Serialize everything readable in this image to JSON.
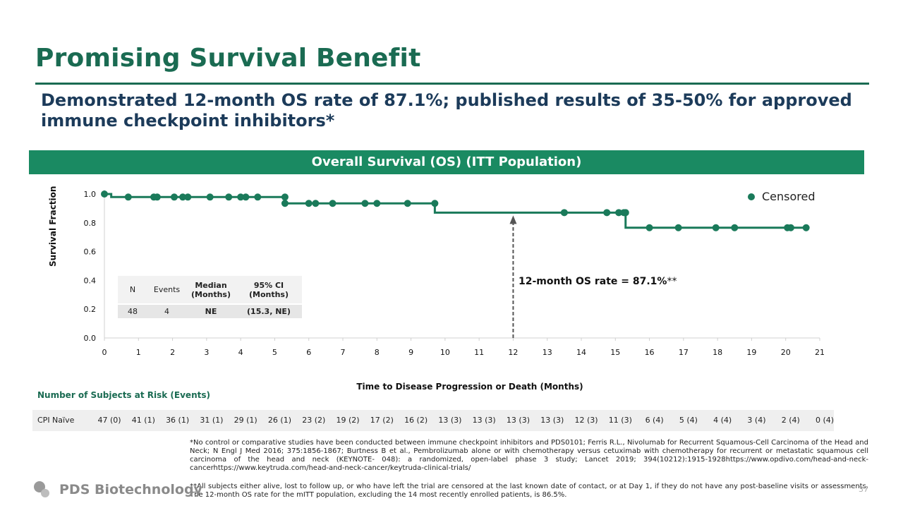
{
  "slide": {
    "title": "Promising Survival Benefit",
    "subtitle": "Demonstrated 12-month OS rate of 87.1%; published results of 35-50% for approved immune checkpoint inhibitors*",
    "banner": "Overall Survival (OS) (ITT Population)",
    "page_number": "37",
    "company": "PDS Biotechnology"
  },
  "legend_label": "Censored",
  "stats_table": {
    "headers": [
      "N",
      "Events",
      "Median (Months)",
      "95% CI (Months)"
    ],
    "values": [
      "48",
      "4",
      "NE",
      "(15.3, NE)"
    ]
  },
  "annotation": {
    "prefix": "12-month OS rate = ",
    "value": "87.1%",
    "suffix": "**",
    "at_month": 12
  },
  "chart_data": {
    "type": "line",
    "xlabel": "Time to Disease Progression or Death (Months)",
    "ylabel": "Survival Fraction",
    "xlim": [
      0,
      21
    ],
    "ylim": [
      0,
      1.0
    ],
    "xticks": [
      "0",
      "1",
      "2",
      "3",
      "4",
      "5",
      "6",
      "7",
      "8",
      "9",
      "10",
      "11",
      "12",
      "13",
      "14",
      "15",
      "16",
      "17",
      "18",
      "19",
      "20",
      "21"
    ],
    "yticks": [
      "0.0",
      "0.2",
      "0.4",
      "0.6",
      "0.8",
      "1.0"
    ],
    "colors": {
      "line": "#1a7a5a",
      "marker": "#1a7a5a",
      "arrow": "#555555"
    },
    "steps": [
      {
        "x": 0,
        "y": 1.0
      },
      {
        "x": 0.2,
        "y": 0.979
      },
      {
        "x": 5.3,
        "y": 0.935
      },
      {
        "x": 9.7,
        "y": 0.871
      },
      {
        "x": 15.3,
        "y": 0.766
      }
    ],
    "end_x": 20.6,
    "censored": [
      {
        "x": 0.0,
        "y": 1.0
      },
      {
        "x": 0.7,
        "y": 0.979
      },
      {
        "x": 1.45,
        "y": 0.979
      },
      {
        "x": 1.55,
        "y": 0.979
      },
      {
        "x": 2.05,
        "y": 0.979
      },
      {
        "x": 2.3,
        "y": 0.979
      },
      {
        "x": 2.45,
        "y": 0.979
      },
      {
        "x": 3.1,
        "y": 0.979
      },
      {
        "x": 3.65,
        "y": 0.979
      },
      {
        "x": 4.0,
        "y": 0.979
      },
      {
        "x": 4.15,
        "y": 0.979
      },
      {
        "x": 4.5,
        "y": 0.979
      },
      {
        "x": 5.3,
        "y": 0.979
      },
      {
        "x": 5.3,
        "y": 0.935
      },
      {
        "x": 6.0,
        "y": 0.935
      },
      {
        "x": 6.2,
        "y": 0.935
      },
      {
        "x": 6.7,
        "y": 0.935
      },
      {
        "x": 7.65,
        "y": 0.935
      },
      {
        "x": 8.0,
        "y": 0.935
      },
      {
        "x": 8.9,
        "y": 0.935
      },
      {
        "x": 9.7,
        "y": 0.935
      },
      {
        "x": 13.5,
        "y": 0.871
      },
      {
        "x": 14.75,
        "y": 0.871
      },
      {
        "x": 15.1,
        "y": 0.871
      },
      {
        "x": 15.25,
        "y": 0.871
      },
      {
        "x": 15.3,
        "y": 0.871
      },
      {
        "x": 16.0,
        "y": 0.766
      },
      {
        "x": 16.85,
        "y": 0.766
      },
      {
        "x": 17.95,
        "y": 0.766
      },
      {
        "x": 18.5,
        "y": 0.766
      },
      {
        "x": 20.05,
        "y": 0.766
      },
      {
        "x": 20.15,
        "y": 0.766
      },
      {
        "x": 20.6,
        "y": 0.766
      }
    ]
  },
  "risk_table": {
    "title": "Number of Subjects at Risk (Events)",
    "row_label": "CPI Naïve",
    "values": [
      "47 (0)",
      "41 (1)",
      "36 (1)",
      "31 (1)",
      "29 (1)",
      "26 (1)",
      "23 (2)",
      "19 (2)",
      "17 (2)",
      "16 (2)",
      "13 (3)",
      "13 (3)",
      "13 (3)",
      "13 (3)",
      "12 (3)",
      "11 (3)",
      "6 (4)",
      "5 (4)",
      "4 (4)",
      "3 (4)",
      "2 (4)",
      "0 (4)"
    ]
  },
  "footnotes": {
    "fn1": "*No control or comparative studies have been conducted between immune checkpoint inhibitors and PDS0101; Ferris R.L., Nivolumab for Recurrent Squamous-Cell Carcinoma of the Head and Neck; N Engl J Med 2016; 375:1856-1867; Burtness B et al., Pembrolizumab alone or with chemotherapy versus cetuximab with chemotherapy for recurrent or metastatic squamous cell carcinoma of the head and neck (KEYNOTE- 048): a randomized, open-label phase 3 study; Lancet 2019; 394(10212):1915-1928https://www.opdivo.com/head-and-neck-cancerhttps://www.keytruda.com/head-and-neck-cancer/keytruda-clinical-trials/",
    "fn2": "**All subjects either alive, lost to follow up, or who have left the trial are censored at the last known date of contact, or at Day 1, if they do not have any post-baseline visits or assessments.   The 12-month OS rate for the mITT population, excluding the 14 most recently enrolled patients, is 86.5%."
  }
}
